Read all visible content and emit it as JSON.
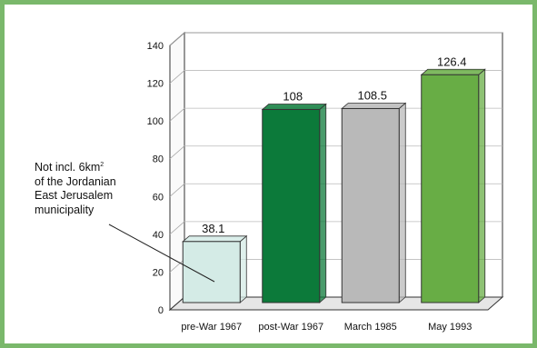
{
  "chart_data": {
    "type": "bar",
    "categories": [
      "pre-War 1967",
      "post-War 1967",
      "March 1985",
      "May 1993"
    ],
    "values": [
      38.1,
      108,
      108.5,
      126.4
    ],
    "value_labels": [
      "38.1",
      "108",
      "108.5",
      "126.4"
    ],
    "bar_colors": [
      "#d4ebe6",
      "#0c7a3a",
      "#b9b9b9",
      "#68ad45"
    ],
    "yticks": [
      "0",
      "20",
      "40",
      "60",
      "80",
      "100",
      "120",
      "140"
    ],
    "ylim": [
      0,
      140
    ],
    "grid": true,
    "annotation": {
      "line1": "Not incl. 6km",
      "superscript": "2",
      "line2": "of the Jordanian",
      "line3": "East Jerusalem",
      "line4": "municipality"
    }
  }
}
